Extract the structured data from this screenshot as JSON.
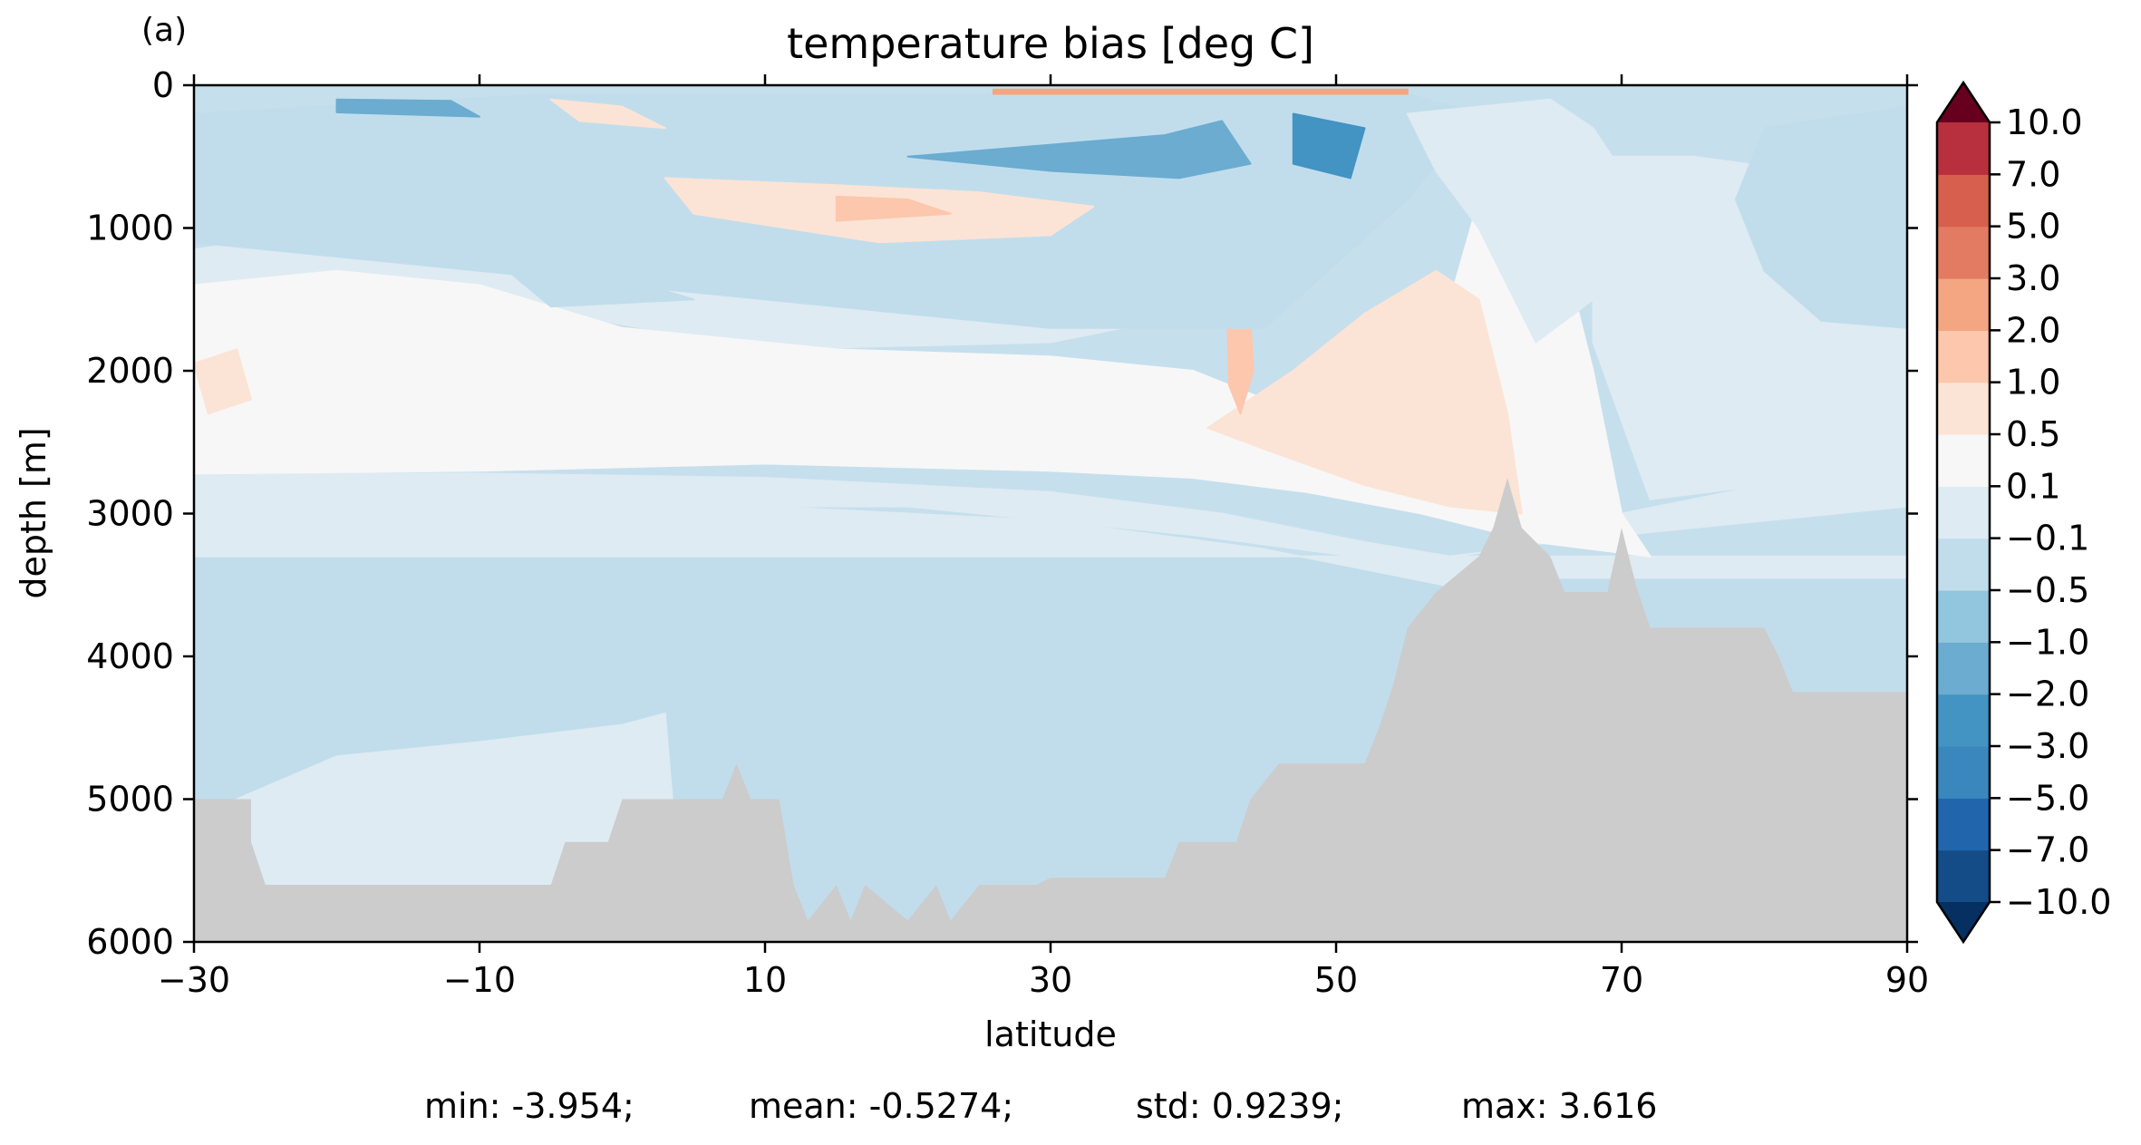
{
  "chart_data": {
    "type": "heatmap",
    "panel_label": "(a)",
    "title": "temperature bias [deg C]",
    "xlabel": "latitude",
    "ylabel": "depth [m]",
    "xlim": [
      -30,
      90
    ],
    "ylim": [
      6000,
      0
    ],
    "xticks": [
      "−30",
      "−10",
      "10",
      "30",
      "50",
      "70",
      "90"
    ],
    "xtick_values": [
      -30,
      -10,
      10,
      30,
      50,
      70,
      90
    ],
    "yticks": [
      "0",
      "1000",
      "2000",
      "3000",
      "4000",
      "5000",
      "6000"
    ],
    "ytick_values": [
      0,
      1000,
      2000,
      3000,
      4000,
      5000,
      6000
    ],
    "colorbar": {
      "extend": "both",
      "tick_labels": [
        "−10.0",
        "−7.0",
        "−5.0",
        "−3.0",
        "−2.0",
        "−1.0",
        "−0.5",
        "−0.1",
        "0.1",
        "0.5",
        "1.0",
        "2.0",
        "3.0",
        "5.0",
        "7.0",
        "10.0"
      ],
      "levels": [
        -10,
        -7,
        -5,
        -3,
        -2,
        -1,
        -0.5,
        -0.1,
        0.1,
        0.5,
        1,
        2,
        3,
        5,
        7,
        10
      ],
      "colors": [
        "#053061",
        "#134c87",
        "#2166ac",
        "#3a87bd",
        "#4393c3",
        "#6bacd0",
        "#92c5de",
        "#c1ddec",
        "#deebf2",
        "#f7f7f7",
        "#fbe4d6",
        "#fcc7ad",
        "#f4a582",
        "#e27b62",
        "#d6604d",
        "#b8303e",
        "#990e25",
        "#67001f"
      ]
    },
    "mask_color": "#cccccc",
    "regions": [
      {
        "name": "deep-negative-water",
        "level": -0.5,
        "points": [
          [
            -30,
            3300
          ],
          [
            90,
            3300
          ],
          [
            90,
            6000
          ],
          [
            -30,
            6000
          ]
        ]
      },
      {
        "name": "mid-negative-band",
        "level": -0.1,
        "points": [
          [
            -30,
            2950
          ],
          [
            -10,
            2900
          ],
          [
            10,
            2950
          ],
          [
            30,
            3050
          ],
          [
            45,
            3250
          ],
          [
            55,
            3450
          ],
          [
            60,
            3550
          ],
          [
            65,
            3450
          ],
          [
            90,
            3450
          ],
          [
            90,
            3300
          ],
          [
            -30,
            3300
          ]
        ]
      },
      {
        "name": "south-deep-pale",
        "level": -0.1,
        "points": [
          [
            -27,
            5000
          ],
          [
            -20,
            4700
          ],
          [
            -10,
            4600
          ],
          [
            0,
            4480
          ],
          [
            3,
            4400
          ],
          [
            4,
            5600
          ],
          [
            -26,
            5600
          ]
        ]
      },
      {
        "name": "white-band-3k",
        "level": 0.0,
        "points": [
          [
            -30,
            2720
          ],
          [
            -10,
            2720
          ],
          [
            10,
            2750
          ],
          [
            30,
            2850
          ],
          [
            42,
            3000
          ],
          [
            52,
            3200
          ],
          [
            58,
            3300
          ],
          [
            62,
            3250
          ],
          [
            70,
            3000
          ],
          [
            80,
            2800
          ],
          [
            90,
            2600
          ],
          [
            90,
            2950
          ],
          [
            65,
            3200
          ],
          [
            55,
            3350
          ],
          [
            40,
            3150
          ],
          [
            20,
            2950
          ],
          [
            -30,
            2950
          ]
        ]
      },
      {
        "name": "north-pale",
        "level": -0.1,
        "points": [
          [
            68,
            500
          ],
          [
            75,
            500
          ],
          [
            90,
            700
          ],
          [
            90,
            2600
          ],
          [
            80,
            2800
          ],
          [
            72,
            2900
          ],
          [
            68,
            1800
          ]
        ]
      },
      {
        "name": "north-blue",
        "level": -0.5,
        "points": [
          [
            80,
            300
          ],
          [
            90,
            150
          ],
          [
            90,
            1700
          ],
          [
            84,
            1650
          ],
          [
            80,
            1300
          ],
          [
            78,
            800
          ]
        ]
      },
      {
        "name": "white-upper-1400",
        "level": 0.0,
        "points": [
          [
            -30,
            1150
          ],
          [
            -15,
            950
          ],
          [
            0,
            1000
          ],
          [
            20,
            1150
          ],
          [
            38,
            1200
          ],
          [
            45,
            1300
          ],
          [
            45,
            1500
          ],
          [
            30,
            1800
          ],
          [
            10,
            1850
          ],
          [
            -10,
            1500
          ],
          [
            -30,
            1400
          ]
        ]
      },
      {
        "name": "positive-band-2000",
        "level": 0.3,
        "points": [
          [
            -30,
            1400
          ],
          [
            -20,
            1300
          ],
          [
            -10,
            1400
          ],
          [
            0,
            1700
          ],
          [
            15,
            1850
          ],
          [
            30,
            1900
          ],
          [
            40,
            2000
          ],
          [
            45,
            2200
          ],
          [
            52,
            2000
          ],
          [
            58,
            1500
          ],
          [
            60,
            800
          ],
          [
            64,
            700
          ],
          [
            66,
            1200
          ],
          [
            68,
            2000
          ],
          [
            70,
            3000
          ],
          [
            72,
            3300
          ],
          [
            64,
            3200
          ],
          [
            56,
            3000
          ],
          [
            48,
            2850
          ],
          [
            40,
            2750
          ],
          [
            30,
            2700
          ],
          [
            10,
            2650
          ],
          [
            -10,
            2700
          ],
          [
            -30,
            2720
          ]
        ]
      },
      {
        "name": "positive-core-north",
        "level": 0.8,
        "points": [
          [
            41,
            2400
          ],
          [
            47,
            2000
          ],
          [
            52,
            1600
          ],
          [
            57,
            1300
          ],
          [
            60,
            1500
          ],
          [
            62,
            2300
          ],
          [
            63,
            3000
          ],
          [
            58,
            2950
          ],
          [
            52,
            2800
          ],
          [
            45,
            2550
          ]
        ]
      },
      {
        "name": "positive-south-patch",
        "level": 0.8,
        "points": [
          [
            -30,
            1950
          ],
          [
            -27,
            1850
          ],
          [
            -26,
            2200
          ],
          [
            -29,
            2300
          ]
        ]
      },
      {
        "name": "ridge-positive-43",
        "level": 1.4,
        "points": [
          [
            42.3,
            1300
          ],
          [
            43.8,
            1300
          ],
          [
            44.2,
            2000
          ],
          [
            43.3,
            2300
          ],
          [
            42.5,
            2100
          ]
        ]
      },
      {
        "name": "ridge-positive-upper",
        "level": 0.8,
        "points": [
          [
            42,
            600
          ],
          [
            44,
            600
          ],
          [
            44.5,
            1000
          ],
          [
            43,
            1100
          ],
          [
            41.8,
            900
          ]
        ]
      },
      {
        "name": "upper-blue-1000",
        "level": -0.5,
        "points": [
          [
            -5,
            200
          ],
          [
            10,
            350
          ],
          [
            25,
            450
          ],
          [
            40,
            350
          ],
          [
            48,
            100
          ],
          [
            55,
            150
          ],
          [
            50,
            800
          ],
          [
            45,
            1500
          ],
          [
            40,
            1650
          ],
          [
            30,
            1600
          ],
          [
            20,
            1350
          ],
          [
            30,
            1000
          ],
          [
            15,
            600
          ],
          [
            0,
            500
          ]
        ]
      },
      {
        "name": "upper-negative-layer",
        "level": -0.3,
        "points": [
          [
            -30,
            200
          ],
          [
            -5,
            60
          ],
          [
            20,
            60
          ],
          [
            55,
            60
          ],
          [
            60,
            200
          ],
          [
            55,
            800
          ],
          [
            45,
            1700
          ],
          [
            30,
            1700
          ],
          [
            10,
            1500
          ],
          [
            -10,
            1300
          ],
          [
            -30,
            1100
          ]
        ]
      },
      {
        "name": "upper-core-blue",
        "level": -2.5,
        "points": [
          [
            47,
            200
          ],
          [
            52,
            300
          ],
          [
            51,
            650
          ],
          [
            47,
            550
          ]
        ]
      },
      {
        "name": "upper-mid-blue",
        "level": -1.5,
        "points": [
          [
            38,
            350
          ],
          [
            42,
            250
          ],
          [
            44,
            550
          ],
          [
            39,
            650
          ],
          [
            30,
            600
          ],
          [
            20,
            500
          ]
        ]
      },
      {
        "name": "upper-blue-left",
        "level": -1.5,
        "points": [
          [
            -20,
            100
          ],
          [
            -12,
            110
          ],
          [
            -10,
            220
          ],
          [
            -20,
            190
          ]
        ]
      },
      {
        "name": "upper-orange-arc",
        "level": 0.8,
        "points": [
          [
            3,
            650
          ],
          [
            15,
            700
          ],
          [
            25,
            750
          ],
          [
            33,
            850
          ],
          [
            30,
            1050
          ],
          [
            18,
            1100
          ],
          [
            5,
            900
          ]
        ]
      },
      {
        "name": "upper-orange-core",
        "level": 1.4,
        "points": [
          [
            15,
            780
          ],
          [
            20,
            800
          ],
          [
            23,
            900
          ],
          [
            15,
            950
          ]
        ]
      },
      {
        "name": "surface-orange",
        "level": 0.8,
        "points": [
          [
            -5,
            100
          ],
          [
            0,
            150
          ],
          [
            3,
            300
          ],
          [
            -3,
            250
          ]
        ]
      },
      {
        "name": "surface-red-strip",
        "level": 2.5,
        "points": [
          [
            26,
            30
          ],
          [
            55,
            30
          ],
          [
            55,
            60
          ],
          [
            26,
            60
          ]
        ]
      },
      {
        "name": "mid-blue-1600",
        "level": -0.5,
        "points": [
          [
            -8,
            1300
          ],
          [
            0,
            1350
          ],
          [
            5,
            1500
          ],
          [
            -5,
            1550
          ]
        ]
      },
      {
        "name": "mid-blue-1500",
        "level": -0.5,
        "points": [
          [
            25,
            1100
          ],
          [
            35,
            1200
          ],
          [
            42,
            1400
          ],
          [
            36,
            1650
          ],
          [
            28,
            1500
          ]
        ]
      },
      {
        "name": "north-white-column",
        "level": 0.0,
        "points": [
          [
            55,
            200
          ],
          [
            65,
            100
          ],
          [
            68,
            300
          ],
          [
            70,
            600
          ],
          [
            68,
            1500
          ],
          [
            64,
            1800
          ],
          [
            60,
            1000
          ],
          [
            57,
            600
          ]
        ]
      }
    ],
    "bathymetry": [
      [
        -30,
        5000
      ],
      [
        -26,
        5000
      ],
      [
        -26,
        5300
      ],
      [
        -25,
        5600
      ],
      [
        -20,
        5600
      ],
      [
        -5,
        5600
      ],
      [
        -4,
        5300
      ],
      [
        -1,
        5300
      ],
      [
        0,
        5000
      ],
      [
        7,
        5000
      ],
      [
        8,
        4750
      ],
      [
        9,
        5000
      ],
      [
        11,
        5000
      ],
      [
        12,
        5600
      ],
      [
        13,
        5850
      ],
      [
        15,
        5600
      ],
      [
        16,
        5850
      ],
      [
        17,
        5600
      ],
      [
        20,
        5850
      ],
      [
        22,
        5600
      ],
      [
        23,
        5850
      ],
      [
        25,
        5600
      ],
      [
        29,
        5600
      ],
      [
        30,
        5550
      ],
      [
        38,
        5550
      ],
      [
        39,
        5300
      ],
      [
        43,
        5300
      ],
      [
        44,
        5000
      ],
      [
        46,
        4750
      ],
      [
        52,
        4750
      ],
      [
        53,
        4500
      ],
      [
        54,
        4200
      ],
      [
        55,
        3800
      ],
      [
        57,
        3550
      ],
      [
        60,
        3300
      ],
      [
        61,
        3100
      ],
      [
        62,
        2750
      ],
      [
        63,
        3100
      ],
      [
        65,
        3300
      ],
      [
        66,
        3550
      ],
      [
        69,
        3550
      ],
      [
        70,
        3100
      ],
      [
        71,
        3500
      ],
      [
        72,
        3800
      ],
      [
        80,
        3800
      ],
      [
        81,
        4000
      ],
      [
        82,
        4250
      ],
      [
        90,
        4250
      ],
      [
        90,
        6000
      ],
      [
        -30,
        6000
      ]
    ],
    "stats": {
      "min": "min: -3.954;",
      "mean": "mean: -0.5274;",
      "std": "std: 0.9239;",
      "max": "max: 3.616"
    }
  }
}
